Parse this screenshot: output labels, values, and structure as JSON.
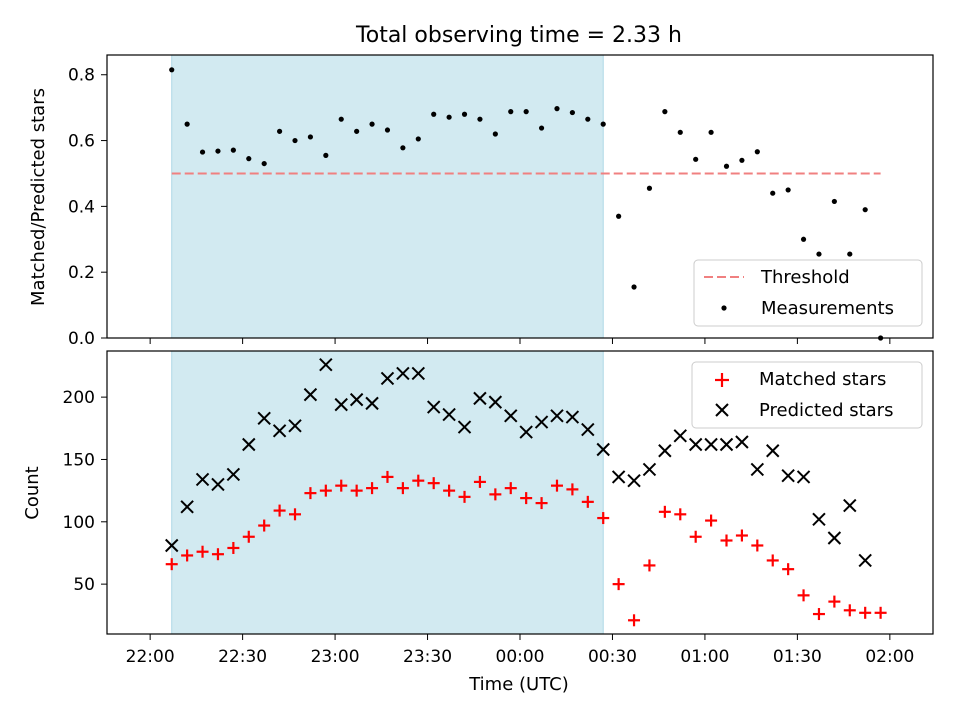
{
  "colors": {
    "shade": "#add8e6",
    "threshold": "#f08080",
    "matched": "#ff0000",
    "predicted": "#000000",
    "measurement": "#000000"
  },
  "chart_data": [
    {
      "type": "scatter",
      "title": "Total observing time = 2.33 h",
      "xlabel": "",
      "ylabel": "Matched/Predicted stars",
      "ylim": [
        0,
        0.86
      ],
      "yticks": [
        0.0,
        0.2,
        0.4,
        0.6,
        0.8
      ],
      "ytick_labels": [
        "0.0",
        "0.2",
        "0.4",
        "0.6",
        "0.8"
      ],
      "shaded_interval": [
        "22:07",
        "00:27"
      ],
      "threshold": {
        "name": "Threshold",
        "value": 0.5,
        "x_start": "22:07",
        "x_end": "01:57"
      },
      "legend": {
        "position": "lower-right",
        "entries": [
          "Threshold",
          "Measurements"
        ]
      },
      "series": [
        {
          "name": "Measurements",
          "points": [
            [
              "22:07",
              0.815
            ],
            [
              "22:12",
              0.65
            ],
            [
              "22:17",
              0.565
            ],
            [
              "22:22",
              0.568
            ],
            [
              "22:27",
              0.571
            ],
            [
              "22:32",
              0.545
            ],
            [
              "22:37",
              0.53
            ],
            [
              "22:42",
              0.628
            ],
            [
              "22:47",
              0.6
            ],
            [
              "22:52",
              0.611
            ],
            [
              "22:57",
              0.555
            ],
            [
              "23:02",
              0.665
            ],
            [
              "23:07",
              0.628
            ],
            [
              "23:12",
              0.65
            ],
            [
              "23:17",
              0.632
            ],
            [
              "23:22",
              0.578
            ],
            [
              "23:27",
              0.605
            ],
            [
              "23:32",
              0.68
            ],
            [
              "23:37",
              0.671
            ],
            [
              "23:42",
              0.68
            ],
            [
              "23:47",
              0.665
            ],
            [
              "23:52",
              0.62
            ],
            [
              "23:57",
              0.688
            ],
            [
              "00:02",
              0.688
            ],
            [
              "00:07",
              0.638
            ],
            [
              "00:12",
              0.697
            ],
            [
              "00:17",
              0.685
            ],
            [
              "00:22",
              0.665
            ],
            [
              "00:27",
              0.65
            ],
            [
              "00:32",
              0.37
            ],
            [
              "00:37",
              0.155
            ],
            [
              "00:42",
              0.455
            ],
            [
              "00:47",
              0.688
            ],
            [
              "00:52",
              0.625
            ],
            [
              "00:57",
              0.543
            ],
            [
              "01:02",
              0.625
            ],
            [
              "01:07",
              0.522
            ],
            [
              "01:12",
              0.54
            ],
            [
              "01:17",
              0.566
            ],
            [
              "01:22",
              0.44
            ],
            [
              "01:27",
              0.45
            ],
            [
              "01:32",
              0.3
            ],
            [
              "01:37",
              0.255
            ],
            [
              "01:42",
              0.415
            ],
            [
              "01:47",
              0.255
            ],
            [
              "01:52",
              0.39
            ],
            [
              "01:57",
              0.0
            ]
          ]
        }
      ]
    },
    {
      "type": "scatter",
      "title": "",
      "xlabel": "Time (UTC)",
      "ylabel": "Count",
      "ylim": [
        10,
        237
      ],
      "yticks": [
        50,
        100,
        150,
        200
      ],
      "ytick_labels": [
        "50",
        "100",
        "150",
        "200"
      ],
      "xticks": [
        "22:00",
        "22:30",
        "23:00",
        "23:30",
        "00:00",
        "00:30",
        "01:00",
        "01:30",
        "02:00"
      ],
      "shaded_interval": [
        "22:07",
        "00:27"
      ],
      "legend": {
        "position": "top-right",
        "entries": [
          "Matched stars",
          "Predicted stars"
        ]
      },
      "series": [
        {
          "name": "Matched stars",
          "points": [
            [
              "22:07",
              66
            ],
            [
              "22:12",
              73
            ],
            [
              "22:17",
              76
            ],
            [
              "22:22",
              74
            ],
            [
              "22:27",
              79
            ],
            [
              "22:32",
              88
            ],
            [
              "22:37",
              97
            ],
            [
              "22:42",
              109
            ],
            [
              "22:47",
              106
            ],
            [
              "22:52",
              123
            ],
            [
              "22:57",
              125
            ],
            [
              "23:02",
              129
            ],
            [
              "23:07",
              125
            ],
            [
              "23:12",
              127
            ],
            [
              "23:17",
              136
            ],
            [
              "23:22",
              127
            ],
            [
              "23:27",
              133
            ],
            [
              "23:32",
              131
            ],
            [
              "23:37",
              125
            ],
            [
              "23:42",
              120
            ],
            [
              "23:47",
              132
            ],
            [
              "23:52",
              122
            ],
            [
              "23:57",
              127
            ],
            [
              "00:02",
              119
            ],
            [
              "00:07",
              115
            ],
            [
              "00:12",
              129
            ],
            [
              "00:17",
              126
            ],
            [
              "00:22",
              116
            ],
            [
              "00:27",
              103
            ],
            [
              "00:32",
              50
            ],
            [
              "00:37",
              21
            ],
            [
              "00:42",
              65
            ],
            [
              "00:47",
              108
            ],
            [
              "00:52",
              106
            ],
            [
              "00:57",
              88
            ],
            [
              "01:02",
              101
            ],
            [
              "01:07",
              85
            ],
            [
              "01:12",
              89
            ],
            [
              "01:17",
              81
            ],
            [
              "01:22",
              69
            ],
            [
              "01:27",
              62
            ],
            [
              "01:32",
              41
            ],
            [
              "01:37",
              26
            ],
            [
              "01:42",
              36
            ],
            [
              "01:47",
              29
            ],
            [
              "01:52",
              27
            ],
            [
              "01:57",
              27
            ]
          ]
        },
        {
          "name": "Predicted stars",
          "points": [
            [
              "22:07",
              81
            ],
            [
              "22:12",
              112
            ],
            [
              "22:17",
              134
            ],
            [
              "22:22",
              130
            ],
            [
              "22:27",
              138
            ],
            [
              "22:32",
              162
            ],
            [
              "22:37",
              183
            ],
            [
              "22:42",
              173
            ],
            [
              "22:47",
              177
            ],
            [
              "22:52",
              202
            ],
            [
              "22:57",
              226
            ],
            [
              "23:02",
              194
            ],
            [
              "23:07",
              198
            ],
            [
              "23:12",
              195
            ],
            [
              "23:17",
              215
            ],
            [
              "23:22",
              219
            ],
            [
              "23:27",
              219
            ],
            [
              "23:32",
              192
            ],
            [
              "23:37",
              186
            ],
            [
              "23:42",
              176
            ],
            [
              "23:47",
              199
            ],
            [
              "23:52",
              196
            ],
            [
              "23:57",
              185
            ],
            [
              "00:02",
              172
            ],
            [
              "00:07",
              180
            ],
            [
              "00:12",
              185
            ],
            [
              "00:17",
              184
            ],
            [
              "00:22",
              174
            ],
            [
              "00:27",
              158
            ],
            [
              "00:32",
              136
            ],
            [
              "00:37",
              133
            ],
            [
              "00:42",
              142
            ],
            [
              "00:47",
              157
            ],
            [
              "00:52",
              169
            ],
            [
              "00:57",
              162
            ],
            [
              "01:02",
              162
            ],
            [
              "01:07",
              162
            ],
            [
              "01:12",
              164
            ],
            [
              "01:17",
              142
            ],
            [
              "01:22",
              157
            ],
            [
              "01:27",
              137
            ],
            [
              "01:32",
              136
            ],
            [
              "01:37",
              102
            ],
            [
              "01:42",
              87
            ],
            [
              "01:47",
              113
            ],
            [
              "01:52",
              69
            ]
          ]
        }
      ]
    }
  ]
}
